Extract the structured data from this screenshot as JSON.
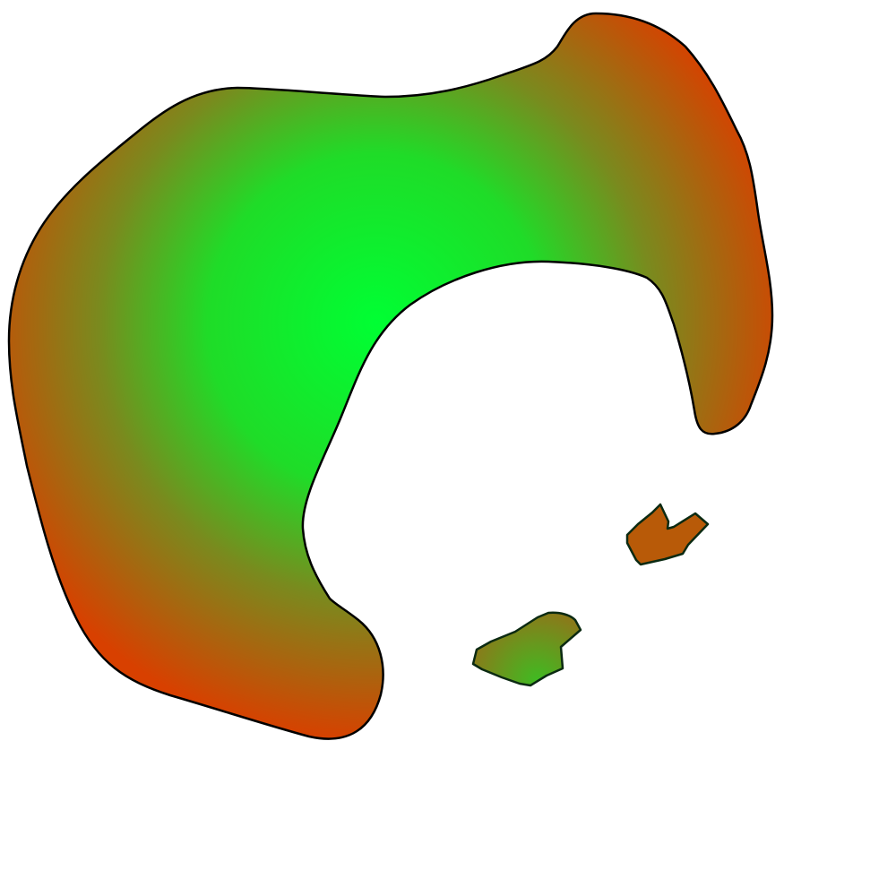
{
  "canvas": {
    "background": "#ffffff"
  },
  "colors": {
    "outline": "#000000",
    "small_outline": "#0b2a12",
    "gradient_center": "#00ff33",
    "gradient_mid": "#7a8a1e",
    "gradient_edge": "#d84000"
  },
  "shapes": [
    {
      "name": "large-c-blob",
      "fill": "radial-gradient"
    },
    {
      "name": "small-fragment-upper",
      "fill": "radial-gradient"
    },
    {
      "name": "small-fragment-lower",
      "fill": "radial-gradient"
    }
  ]
}
